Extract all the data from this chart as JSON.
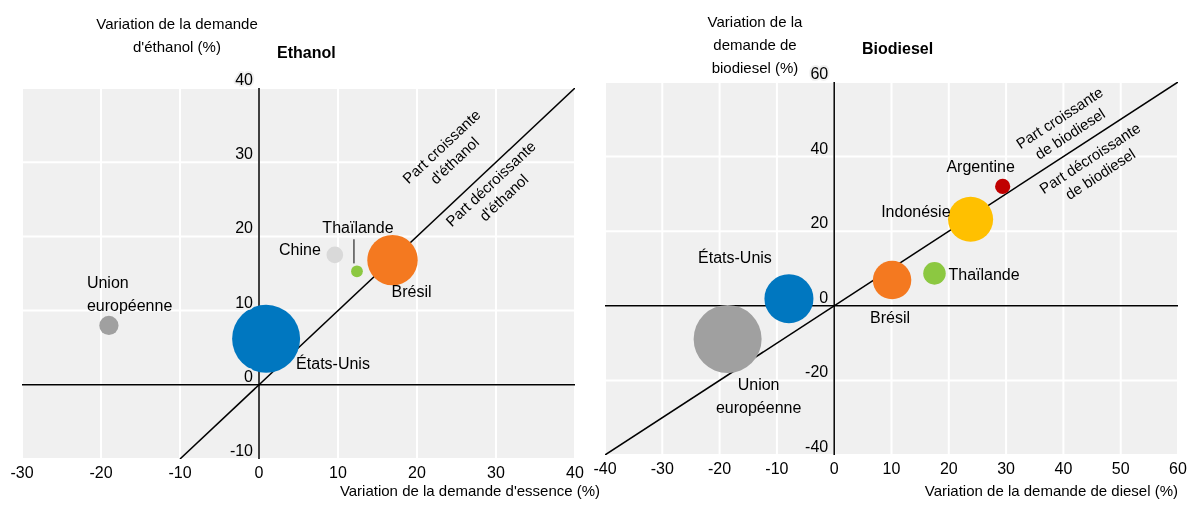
{
  "chart_data": [
    {
      "type": "bubble",
      "title": "Ethanol",
      "xlabel": "Variation de la demande d'essence (%)",
      "ylabel": "Variation de la demande d'éthanol (%)",
      "xlim": [
        -30,
        40
      ],
      "xticks": [
        -30,
        -20,
        -10,
        0,
        10,
        20,
        30,
        40
      ],
      "ylim": [
        -10,
        40
      ],
      "yticks": [
        -10,
        0,
        10,
        20,
        30,
        40
      ],
      "grid": true,
      "series": [
        {
          "name": "États-Unis",
          "color": "#0077c0",
          "x": [
            0.9
          ],
          "values": [
            6.2
          ],
          "sizes": [
            1
          ]
        },
        {
          "name": "Brésil",
          "color": "#f47920",
          "x": [
            16.9
          ],
          "values": [
            16.8
          ],
          "sizes": [
            0.55
          ]
        },
        {
          "name": "Thaïlande",
          "color": "#8cc841",
          "x": [
            12.4
          ],
          "values": [
            15.3
          ],
          "sizes": [
            0.03
          ]
        },
        {
          "name": "Chine",
          "color": "#d9d9d9",
          "x": [
            9.6
          ],
          "values": [
            17.5
          ],
          "sizes": [
            0.06
          ]
        },
        {
          "name": "Union européenne",
          "color": "#a0a0a0",
          "x": [
            -19
          ],
          "values": [
            8
          ],
          "sizes": [
            0.08
          ]
        },
        {
          "type": "line",
          "color": "#000000",
          "x": [
            -10,
            40
          ],
          "values": [
            -10,
            40
          ]
        }
      ],
      "annotations": [
        "Part croissante d'éthanol",
        "Part décroissante d'éthanol"
      ]
    },
    {
      "type": "bubble",
      "title": "Biodiesel",
      "xlabel": "Variation de la demande de diesel (%)",
      "ylabel": "Variation de la demande de biodiesel (%)",
      "xlim": [
        -40,
        60
      ],
      "xticks": [
        -40,
        -30,
        -20,
        -10,
        0,
        10,
        20,
        30,
        40,
        50,
        60
      ],
      "ylim": [
        -40,
        60
      ],
      "yticks": [
        -40,
        -20,
        0,
        20,
        40,
        60
      ],
      "grid": true,
      "series": [
        {
          "name": "Union européenne",
          "color": "#a0a0a0",
          "x": [
            -18.6
          ],
          "values": [
            -8.9
          ],
          "sizes": [
            1
          ]
        },
        {
          "name": "États-Unis",
          "color": "#0077c0",
          "x": [
            -7.9
          ],
          "values": [
            1.9
          ],
          "sizes": [
            0.52
          ]
        },
        {
          "name": "Brésil",
          "color": "#f47920",
          "x": [
            10.1
          ],
          "values": [
            6.9
          ],
          "sizes": [
            0.32
          ]
        },
        {
          "name": "Thaïlande",
          "color": "#8cc841",
          "x": [
            17.5
          ],
          "values": [
            8.7
          ],
          "sizes": [
            0.11
          ]
        },
        {
          "name": "Indonésie",
          "color": "#ffc000",
          "x": [
            23.8
          ],
          "values": [
            23.2
          ],
          "sizes": [
            0.44
          ]
        },
        {
          "name": "Argentine",
          "color": "#c00000",
          "x": [
            29.4
          ],
          "values": [
            32
          ],
          "sizes": [
            0.05
          ]
        },
        {
          "type": "line",
          "color": "#000000",
          "x": [
            -40,
            60
          ],
          "values": [
            -40,
            60
          ]
        }
      ],
      "annotations": [
        "Part croissante de biodiesel",
        "Part décroissante de biodiesel"
      ]
    }
  ]
}
